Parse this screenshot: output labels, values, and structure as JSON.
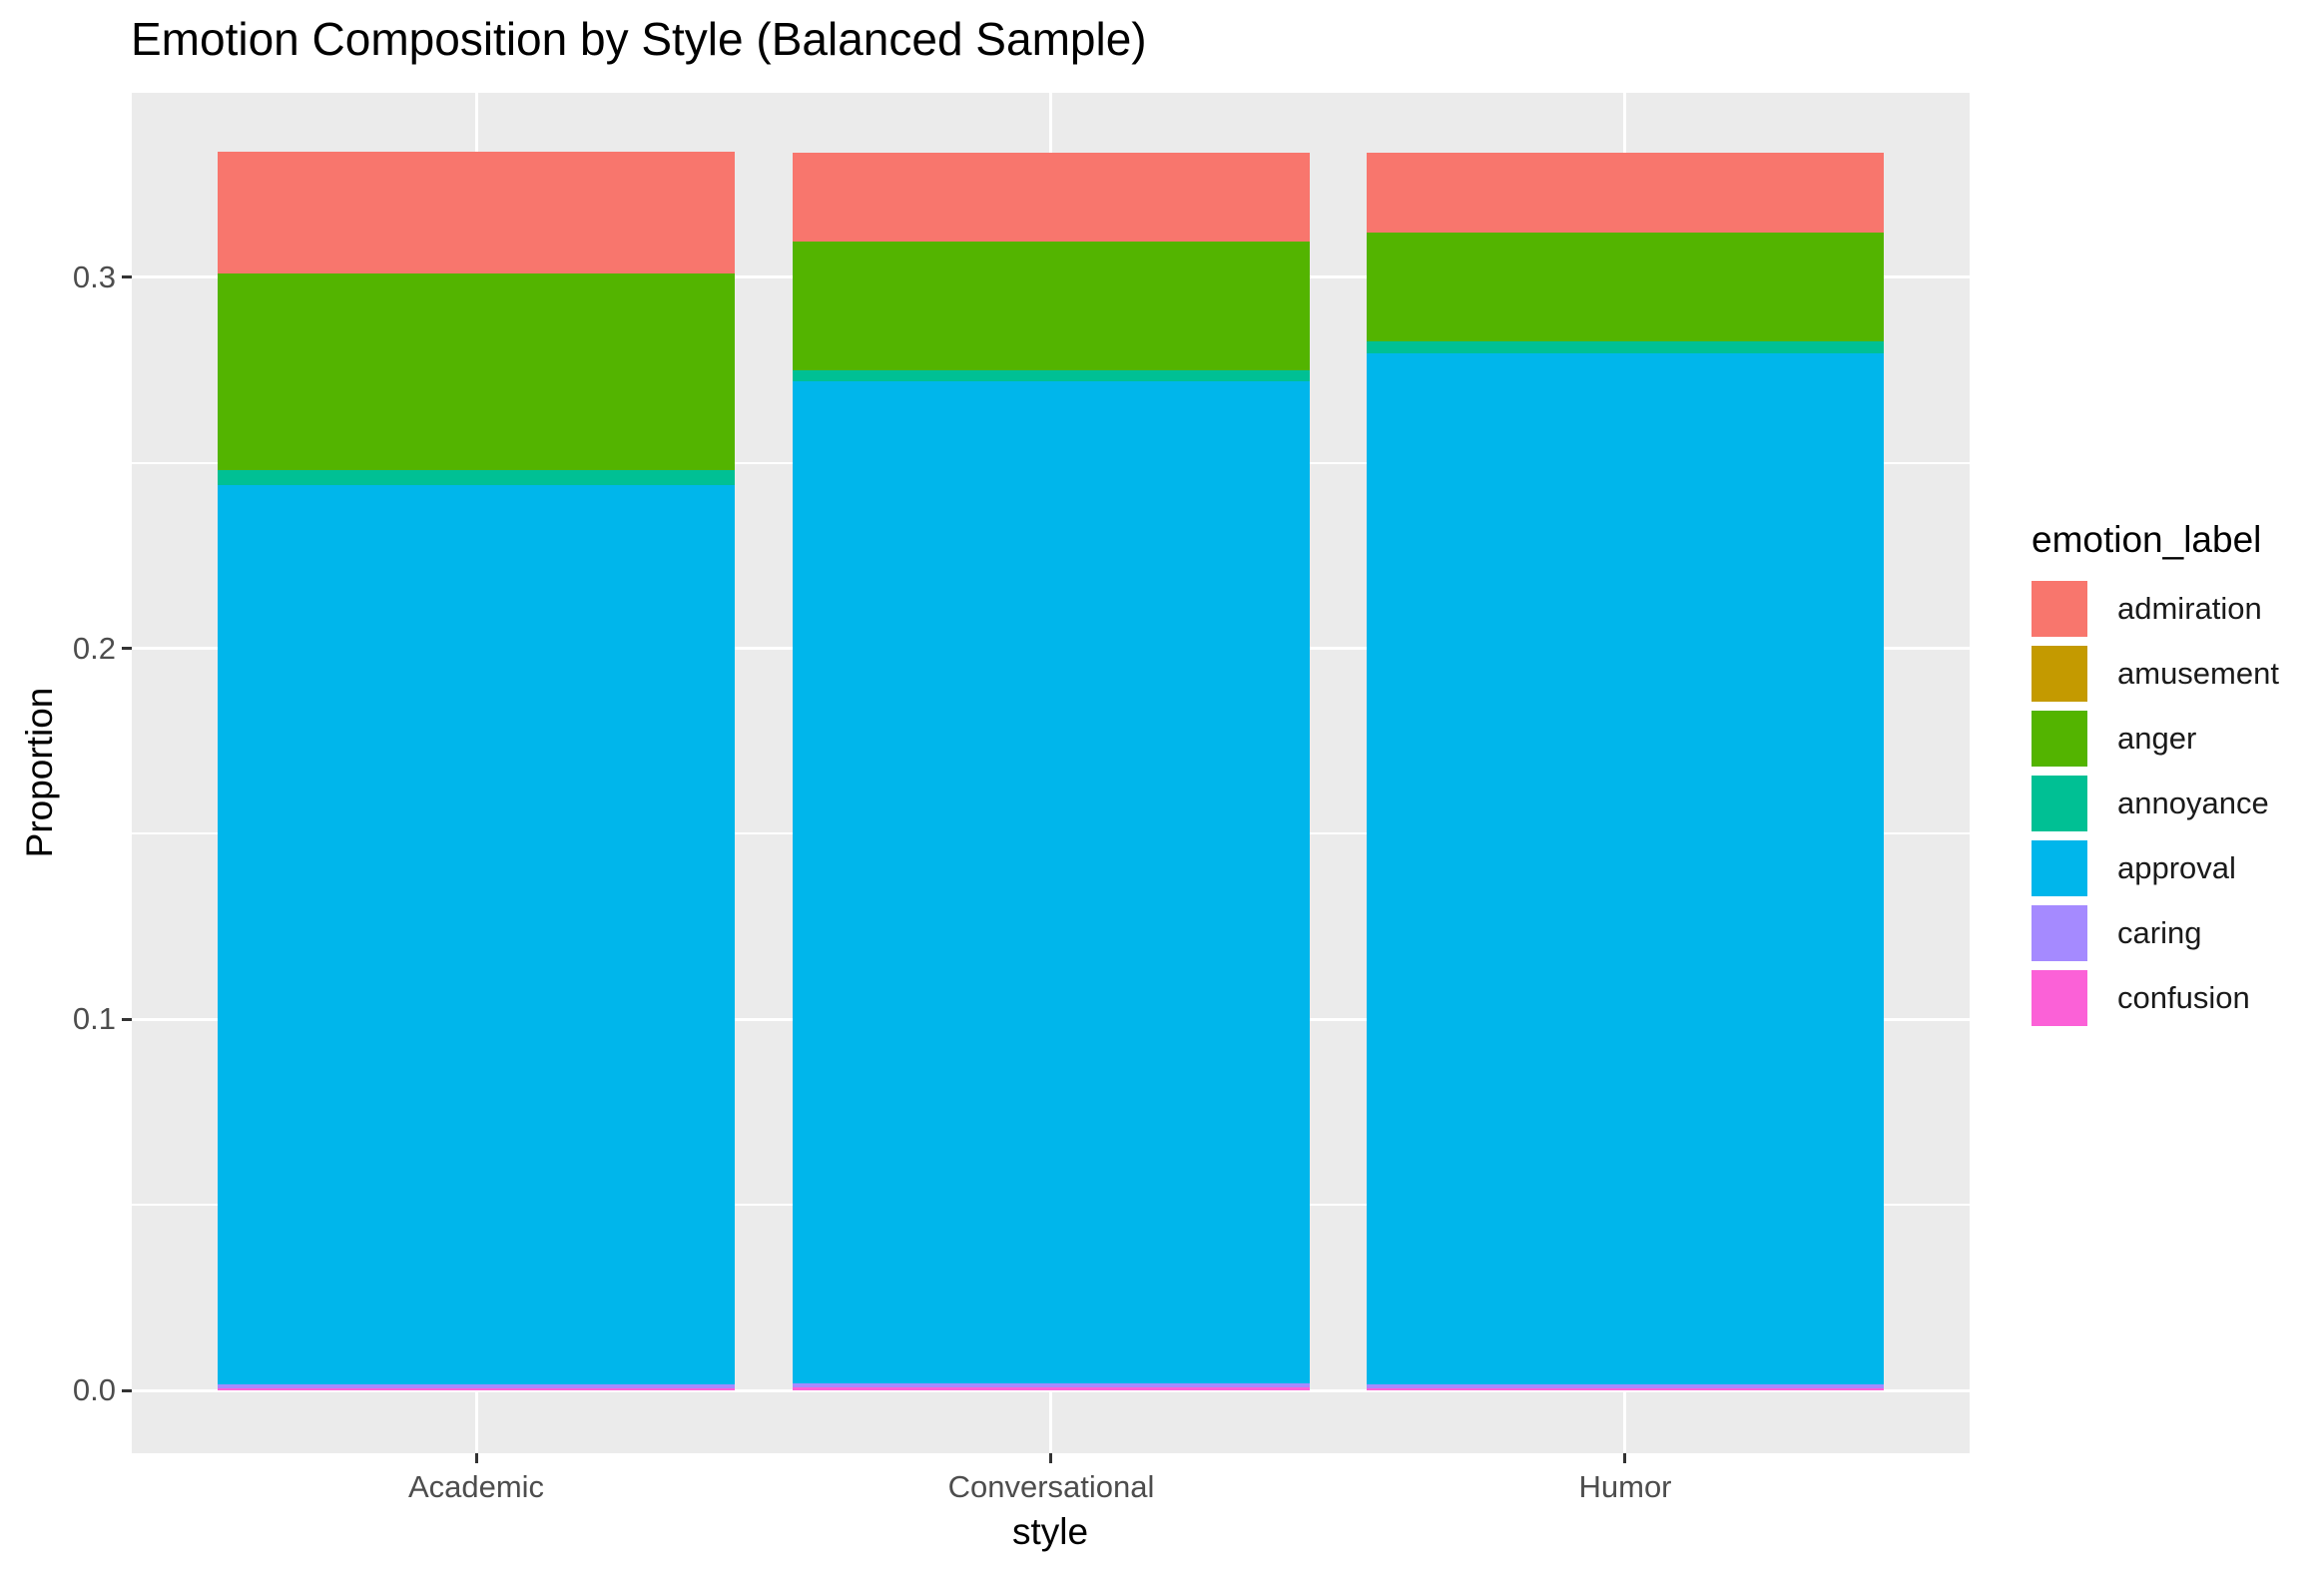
{
  "figure": {
    "background": "#FFFFFF",
    "panel_background": "#EBEBEB",
    "gridline_color": "#FFFFFF",
    "tick_mark_color": "#333333",
    "axis_text_color": "#4D4D4D",
    "text_color": "#000000"
  },
  "chart_data": {
    "type": "bar",
    "stacked": true,
    "orientation": "vertical",
    "title": "Emotion Composition by Style (Balanced Sample)",
    "xlabel": "style",
    "ylabel": "Proportion",
    "legend_title": "emotion_label",
    "legend_position": "right",
    "grid": true,
    "categories": [
      "Academic",
      "Conversational",
      "Humor"
    ],
    "series": [
      {
        "name": "admiration",
        "color": "#F8766D",
        "values": [
          0.0328,
          0.024,
          0.0215
        ]
      },
      {
        "name": "amusement",
        "color": "#C49A00",
        "values": [
          0.0,
          0.0,
          0.0
        ]
      },
      {
        "name": "anger",
        "color": "#53B400",
        "values": [
          0.053,
          0.0347,
          0.0293
        ]
      },
      {
        "name": "annoyance",
        "color": "#00C094",
        "values": [
          0.004,
          0.003,
          0.0032
        ]
      },
      {
        "name": "approval",
        "color": "#00B6EB",
        "values": [
          0.2424,
          0.2699,
          0.2779
        ]
      },
      {
        "name": "caring",
        "color": "#A58AFF",
        "values": [
          0.0011,
          0.0013,
          0.0011
        ]
      },
      {
        "name": "confusion",
        "color": "#FB61D7",
        "values": [
          0.0005,
          0.0007,
          0.0005
        ]
      }
    ],
    "stack_order_bottom_to_top": [
      "confusion",
      "caring",
      "approval",
      "annoyance",
      "anger",
      "amusement",
      "admiration"
    ],
    "totals_per_category": [
      0.3338,
      0.3336,
      0.3335
    ],
    "y_axis": {
      "range": [
        0,
        0.35
      ],
      "major_ticks": [
        0.0,
        0.1,
        0.2,
        0.3
      ],
      "tick_labels": [
        "0.0",
        "0.1",
        "0.2",
        "0.3"
      ],
      "minor_gridlines": [
        0.05,
        0.15,
        0.25,
        0.35
      ]
    }
  }
}
